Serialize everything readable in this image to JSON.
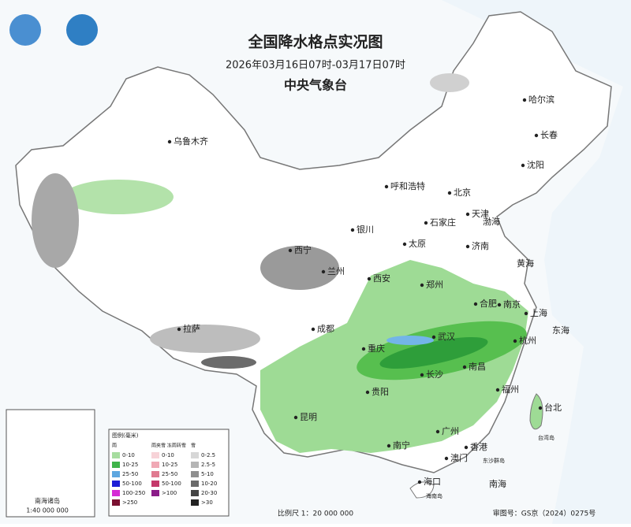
{
  "header": {
    "title": "全国降水格点实况图",
    "period": "2026年03月16日07时-03月17日07时",
    "issuer": "中央气象台"
  },
  "cities": [
    "乌鲁木齐",
    "哈尔滨",
    "长春",
    "沈阳",
    "呼和浩特",
    "北京",
    "天津",
    "石家庄",
    "太原",
    "银川",
    "济南",
    "西宁",
    "兰州",
    "西安",
    "郑州",
    "合肥",
    "南京",
    "上海",
    "拉萨",
    "成都",
    "武汉",
    "杭州",
    "重庆",
    "长沙",
    "南昌",
    "福州",
    "贵阳",
    "台北",
    "昆明",
    "广州",
    "南宁",
    "香港",
    "澳门",
    "海口"
  ],
  "seas": [
    "渤海",
    "黄海",
    "东海",
    "南海",
    "东沙群岛",
    "台湾岛",
    "海南岛"
  ],
  "legend": {
    "title": "图例(毫米)",
    "groups": [
      {
        "name": "雨",
        "items": [
          "0-10",
          "10-25",
          "25-50",
          "50-100",
          "100-250",
          ">250"
        ]
      },
      {
        "name": "雨夹雪 冻雨转雪",
        "items": [
          "0-10",
          "10-25",
          "25-50",
          "50-100",
          ">100"
        ]
      },
      {
        "name": "雪",
        "items": [
          "0-2.5",
          "2.5-5",
          "5-10",
          "10-20",
          "20-30",
          ">30"
        ]
      }
    ]
  },
  "inset": {
    "label": "南海诸岛",
    "scale": "1:40 000 000"
  },
  "footer": {
    "scale": "比例尺 1：20 000 000",
    "review": "审图号：GS京（2024）0275号"
  }
}
